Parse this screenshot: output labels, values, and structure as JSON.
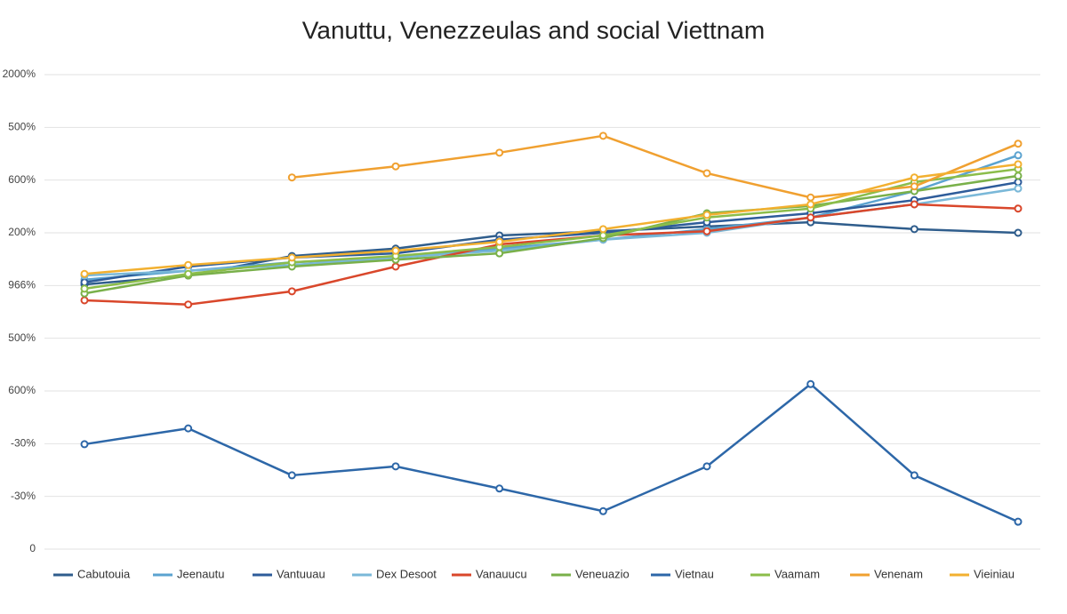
{
  "chart_data": {
    "type": "line",
    "title": "Vanuttu, Venezzeulas and social Viettnam",
    "categories": [
      null,
      null,
      null,
      null,
      null,
      null,
      null,
      null,
      null,
      null
    ],
    "ylim": [
      0,
      9
    ],
    "yticks": [
      {
        "value": 9,
        "label": "2000%"
      },
      {
        "value": 8,
        "label": "500%"
      },
      {
        "value": 7,
        "label": "600%"
      },
      {
        "value": 6,
        "label": "200%"
      },
      {
        "value": 5,
        "label": "966%"
      },
      {
        "value": 4,
        "label": "500%"
      },
      {
        "value": 3,
        "label": "600%"
      },
      {
        "value": 2,
        "label": "-30%"
      },
      {
        "value": 1,
        "label": "-30%"
      },
      0
    ],
    "grid": true,
    "legend": "bottom",
    "series": [
      {
        "name": "Cabutouia",
        "color": "#2f5d8c",
        "values": [
          5.02,
          5.19,
          5.56,
          5.7,
          5.95,
          6.03,
          6.12,
          6.2,
          6.07,
          6.0
        ]
      },
      {
        "name": "Jeenautu",
        "color": "#5ba3d0",
        "values": [
          5.11,
          5.28,
          5.44,
          5.53,
          5.7,
          5.87,
          6.07,
          6.29,
          6.79,
          7.47
        ]
      },
      {
        "name": "Vantuuau",
        "color": "#2e5c9a",
        "values": [
          5.06,
          5.36,
          5.53,
          5.61,
          5.87,
          6.0,
          6.2,
          6.37,
          6.62,
          6.96
        ]
      },
      {
        "name": "Dex Desoot",
        "color": "#7ab8d8",
        "values": [
          5.19,
          5.28,
          5.39,
          5.53,
          5.66,
          5.87,
          6.0,
          6.29,
          6.54,
          6.84
        ]
      },
      {
        "name": "Vanauucu",
        "color": "#d9472b",
        "values": [
          4.72,
          4.64,
          4.89,
          5.36,
          5.78,
          5.95,
          6.03,
          6.29,
          6.54,
          6.46
        ]
      },
      {
        "name": "Veneuazio",
        "color": "#79b04a",
        "values": [
          4.85,
          5.19,
          5.36,
          5.49,
          5.61,
          5.9,
          6.37,
          6.51,
          6.79,
          7.08
        ]
      },
      {
        "name": "Vietnau",
        "color": "#2d67a8",
        "values": [
          1.99,
          2.29,
          1.4,
          1.57,
          1.15,
          0.72,
          1.57,
          3.13,
          1.4,
          0.52
        ]
      },
      {
        "name": "Vaamam",
        "color": "#8bbd4a",
        "values": [
          4.94,
          5.22,
          5.44,
          5.56,
          5.73,
          5.95,
          6.29,
          6.46,
          6.96,
          7.21
        ]
      },
      {
        "name": "Venenam",
        "color": "#f0a030",
        "values": [
          null,
          null,
          7.05,
          7.26,
          7.52,
          7.84,
          7.13,
          6.67,
          6.88,
          7.69
        ]
      },
      {
        "name": "Vieiniau",
        "color": "#f2b030",
        "values": [
          5.22,
          5.39,
          5.53,
          5.66,
          5.83,
          6.07,
          6.34,
          6.54,
          7.05,
          7.3
        ]
      }
    ]
  }
}
